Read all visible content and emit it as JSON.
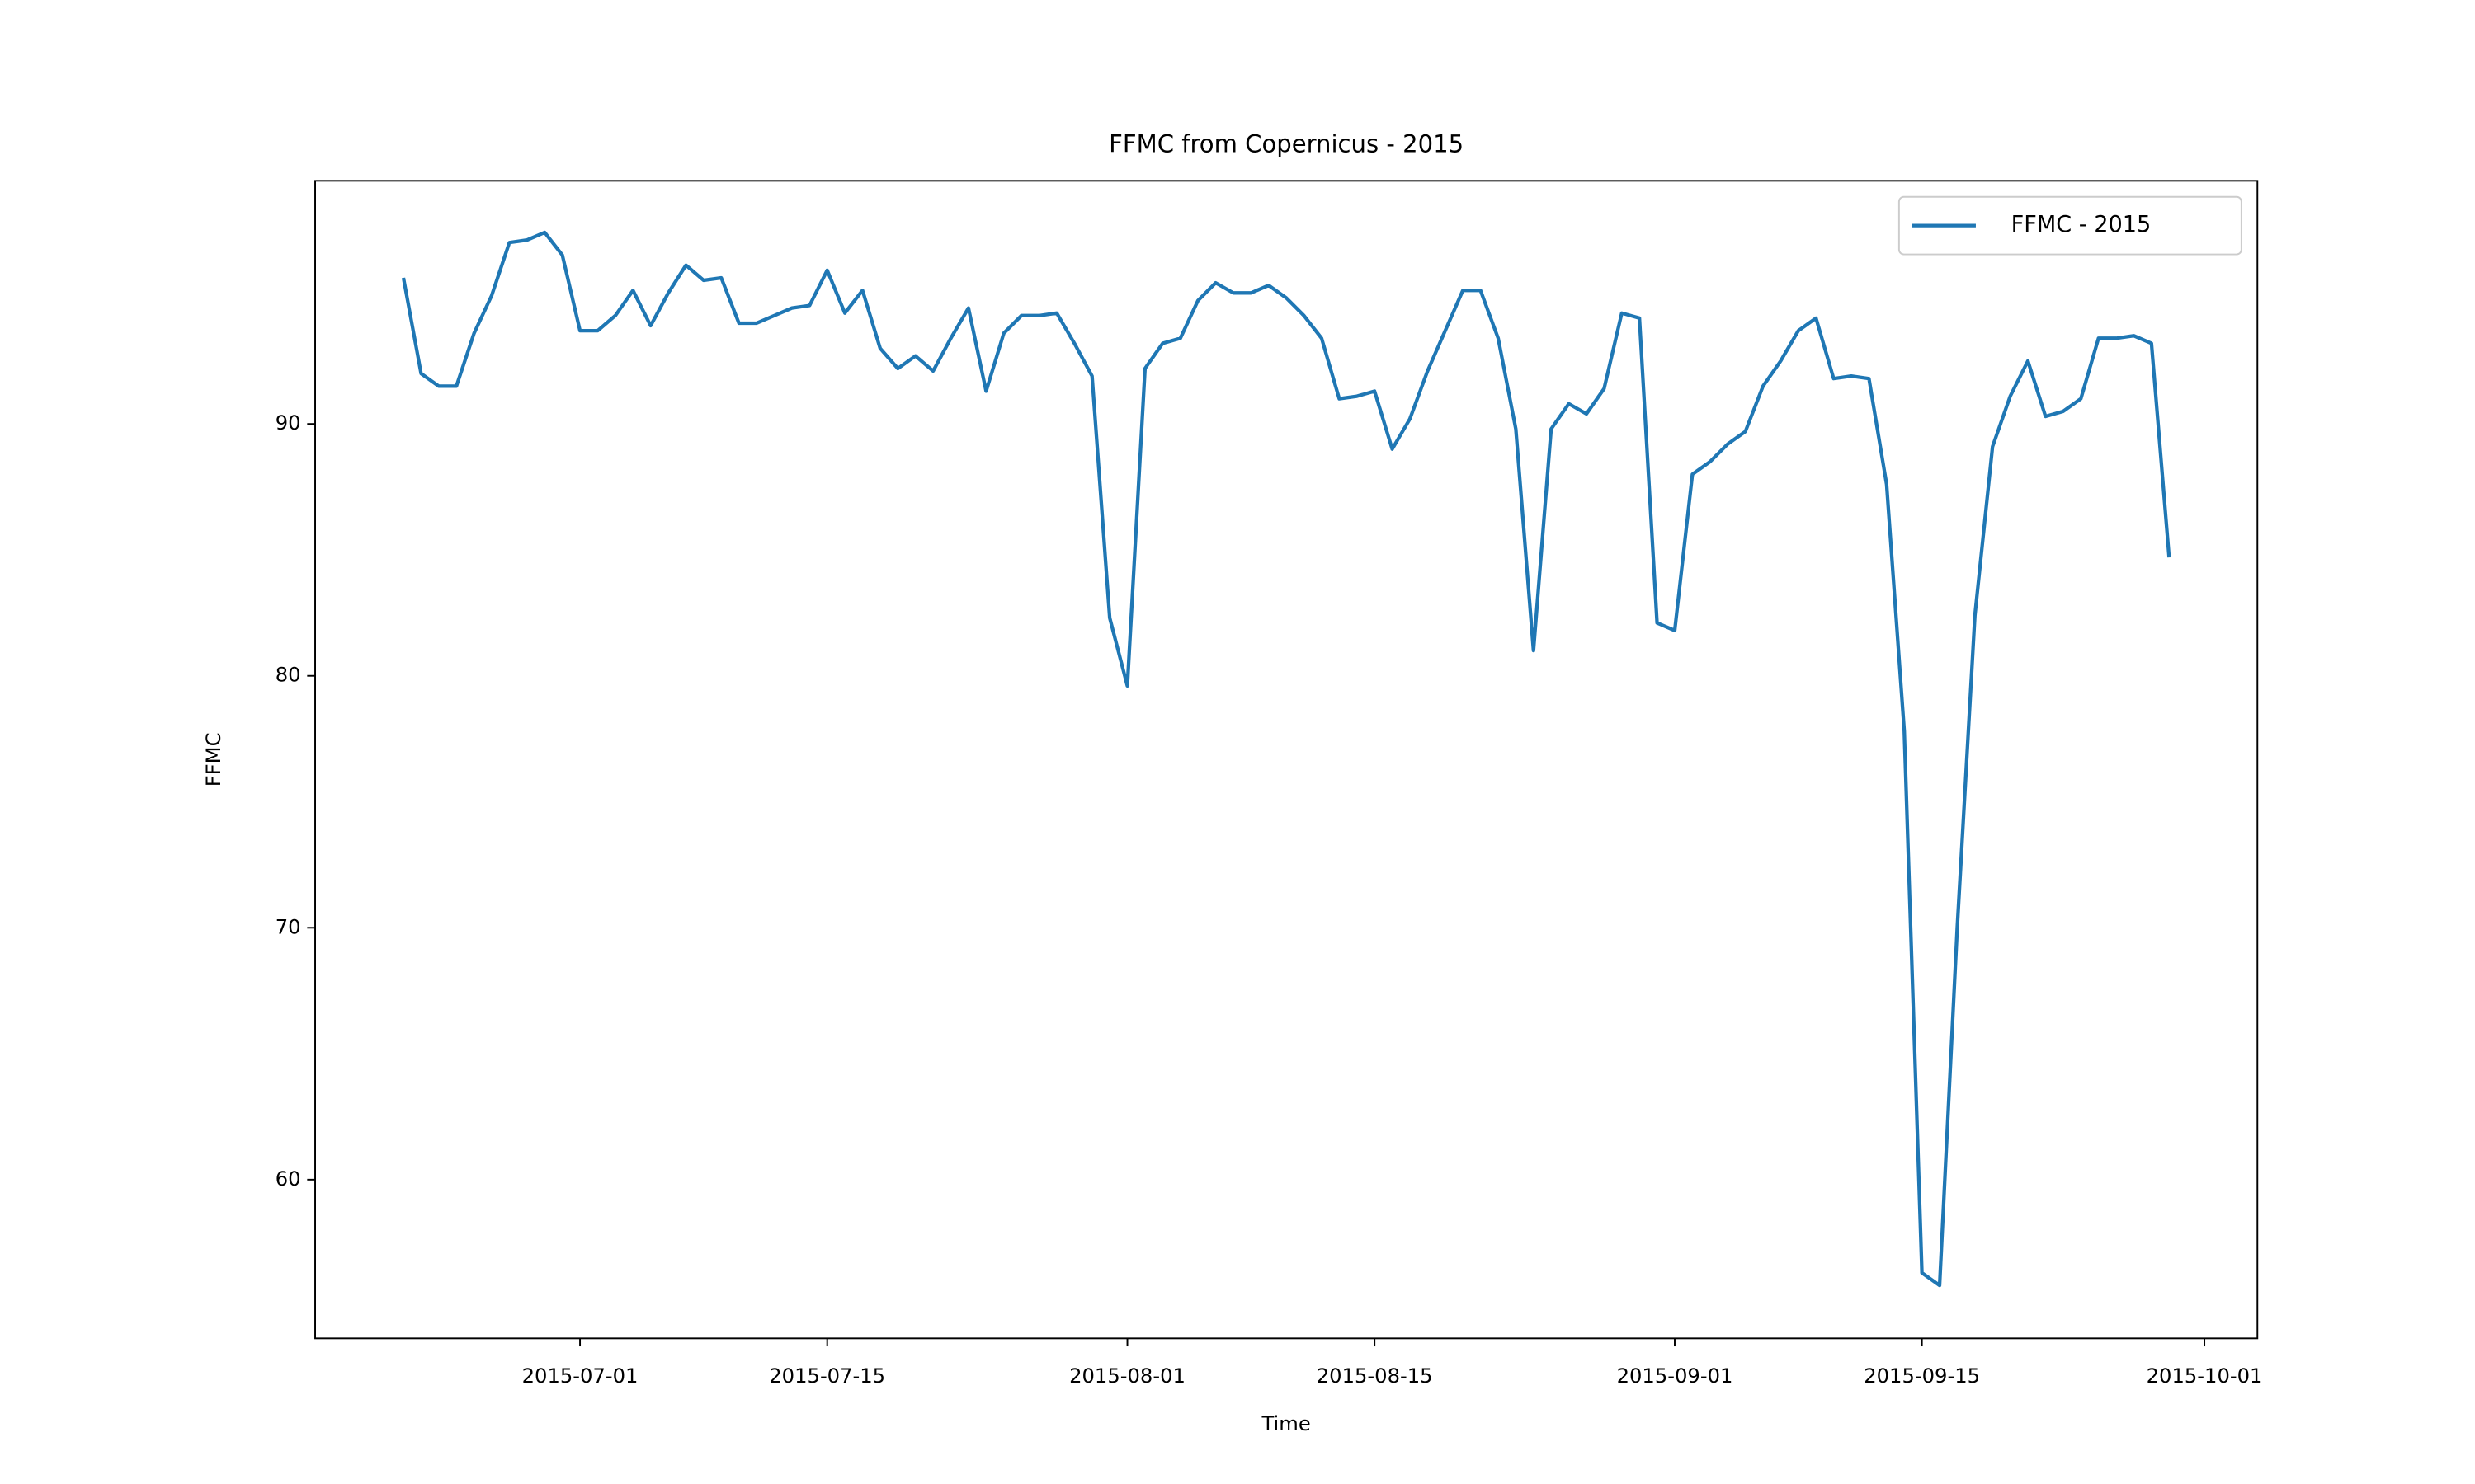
{
  "chart_data": {
    "type": "line",
    "title": "FFMC from Copernicus - 2015",
    "xlabel": "Time",
    "ylabel": "FFMC",
    "legend": "upper right",
    "x": [
      "2015-06-21",
      "2015-06-22",
      "2015-06-23",
      "2015-06-24",
      "2015-06-25",
      "2015-06-26",
      "2015-06-27",
      "2015-06-28",
      "2015-06-29",
      "2015-06-30",
      "2015-07-01",
      "2015-07-02",
      "2015-07-03",
      "2015-07-04",
      "2015-07-05",
      "2015-07-06",
      "2015-07-07",
      "2015-07-08",
      "2015-07-09",
      "2015-07-10",
      "2015-07-11",
      "2015-07-12",
      "2015-07-13",
      "2015-07-14",
      "2015-07-15",
      "2015-07-16",
      "2015-07-17",
      "2015-07-18",
      "2015-07-19",
      "2015-07-20",
      "2015-07-21",
      "2015-07-22",
      "2015-07-23",
      "2015-07-24",
      "2015-07-25",
      "2015-07-26",
      "2015-07-27",
      "2015-07-28",
      "2015-07-29",
      "2015-07-30",
      "2015-07-31",
      "2015-08-01",
      "2015-08-02",
      "2015-08-03",
      "2015-08-04",
      "2015-08-05",
      "2015-08-06",
      "2015-08-07",
      "2015-08-08",
      "2015-08-09",
      "2015-08-10",
      "2015-08-11",
      "2015-08-12",
      "2015-08-13",
      "2015-08-14",
      "2015-08-15",
      "2015-08-16",
      "2015-08-17",
      "2015-08-18",
      "2015-08-19",
      "2015-08-20",
      "2015-08-21",
      "2015-08-22",
      "2015-08-23",
      "2015-08-24",
      "2015-08-25",
      "2015-08-26",
      "2015-08-27",
      "2015-08-28",
      "2015-08-29",
      "2015-08-30",
      "2015-08-31",
      "2015-09-01",
      "2015-09-02",
      "2015-09-03",
      "2015-09-04",
      "2015-09-05",
      "2015-09-06",
      "2015-09-07",
      "2015-09-08",
      "2015-09-09",
      "2015-09-10",
      "2015-09-11",
      "2015-09-12",
      "2015-09-13",
      "2015-09-14",
      "2015-09-15",
      "2015-09-16",
      "2015-09-17",
      "2015-09-18",
      "2015-09-19",
      "2015-09-20",
      "2015-09-21",
      "2015-09-22",
      "2015-09-23",
      "2015-09-24",
      "2015-09-25",
      "2015-09-26",
      "2015-09-27",
      "2015-09-28",
      "2015-09-29"
    ],
    "series": [
      {
        "name": "FFMC - 2015",
        "color": "#1f77b4",
        "values": [
          95.8,
          92.0,
          91.5,
          91.5,
          93.6,
          95.1,
          97.2,
          97.3,
          97.6,
          96.7,
          93.7,
          93.7,
          94.3,
          95.3,
          93.9,
          95.2,
          96.3,
          95.7,
          95.8,
          94.0,
          94.0,
          94.3,
          94.6,
          94.7,
          96.1,
          94.4,
          95.3,
          93.0,
          92.2,
          92.7,
          92.1,
          93.4,
          94.6,
          91.3,
          93.6,
          94.3,
          94.3,
          94.4,
          93.2,
          91.9,
          82.3,
          79.6,
          92.2,
          93.2,
          93.4,
          94.9,
          95.6,
          95.2,
          95.2,
          95.5,
          95.0,
          94.3,
          93.4,
          91.0,
          91.1,
          91.3,
          89.0,
          90.2,
          92.1,
          93.7,
          95.3,
          95.3,
          93.4,
          89.8,
          81.0,
          89.8,
          90.8,
          90.4,
          91.4,
          94.4,
          94.2,
          82.1,
          81.8,
          88.0,
          88.5,
          89.2,
          89.7,
          91.5,
          92.5,
          93.7,
          94.2,
          91.8,
          91.9,
          91.8,
          87.6,
          77.8,
          56.3,
          55.8,
          70.0,
          82.4,
          89.1,
          91.1,
          92.5,
          90.3,
          90.5,
          91.0,
          93.4,
          93.4,
          93.5,
          93.2,
          84.7
        ]
      }
    ],
    "xlim": [
      "2015-06-16",
      "2015-10-04"
    ],
    "xticks": [
      "2015-07-01",
      "2015-07-15",
      "2015-08-01",
      "2015-08-15",
      "2015-09-01",
      "2015-09-15",
      "2015-10-01"
    ],
    "ylim": [
      53.7,
      99.65
    ],
    "yticks": [
      60,
      70,
      80,
      90
    ]
  }
}
